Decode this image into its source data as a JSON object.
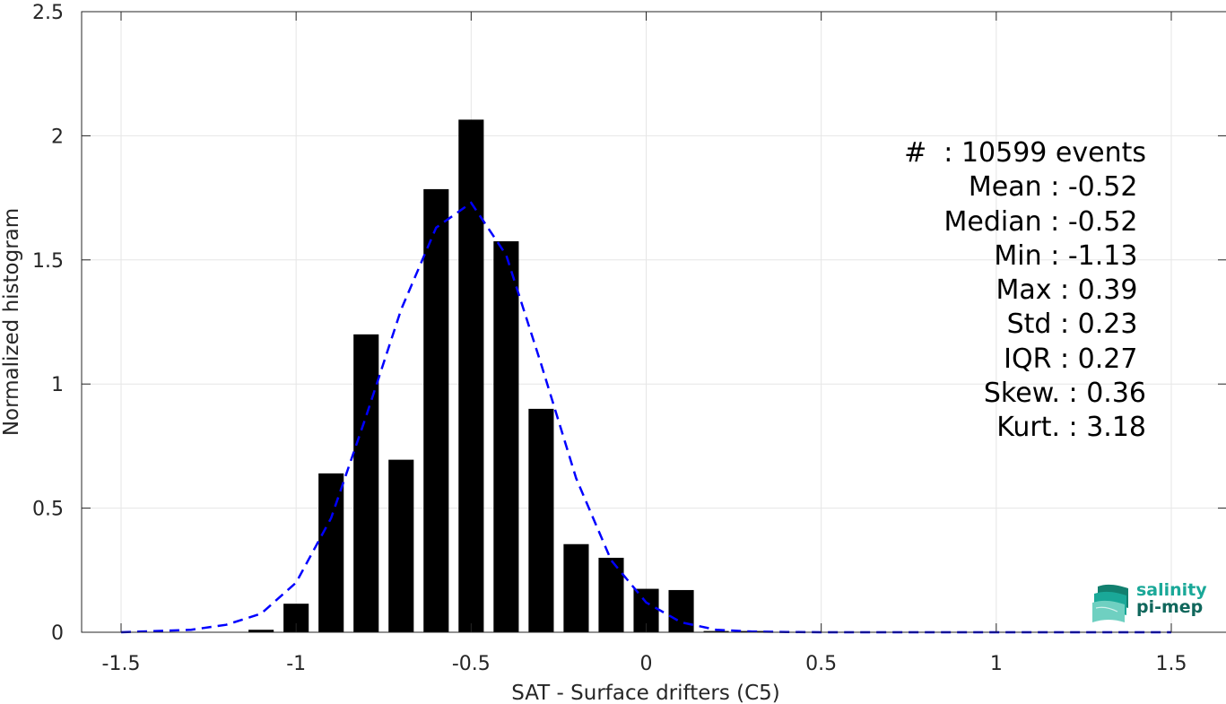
{
  "chart_data": {
    "type": "bar",
    "xlabel": "SAT - Surface drifters (C5)",
    "ylabel": "Normalized histogram",
    "xlim": [
      -1.5,
      1.5
    ],
    "ylim": [
      0,
      2.5
    ],
    "xticks": [
      -1.5,
      -1,
      -0.5,
      0,
      0.5,
      1,
      1.5
    ],
    "xtick_labels": [
      "-1.5",
      "-1",
      "-0.5",
      "0",
      "0.5",
      "1",
      "1.5"
    ],
    "yticks": [
      0,
      0.5,
      1,
      1.5,
      2,
      2.5
    ],
    "ytick_labels": [
      "0",
      "0.5",
      "1",
      "1.5",
      "2",
      "2.5"
    ],
    "grid": true,
    "bins": {
      "x": [
        -1.1,
        -1.0,
        -0.9,
        -0.8,
        -0.7,
        -0.6,
        -0.5,
        -0.4,
        -0.3,
        -0.2,
        -0.1,
        0.0,
        0.1,
        0.2,
        0.3
      ],
      "values": [
        0.01,
        0.115,
        0.64,
        1.2,
        0.695,
        1.785,
        2.065,
        1.575,
        0.9,
        0.355,
        0.3,
        0.175,
        0.17,
        0.005,
        0.005
      ],
      "color": "#000000"
    },
    "fit_curve": {
      "style": "dashed",
      "color": "#0000ff",
      "x": [
        -1.5,
        -1.4,
        -1.3,
        -1.2,
        -1.1,
        -1.0,
        -0.9,
        -0.8,
        -0.7,
        -0.6,
        -0.5,
        -0.4,
        -0.3,
        -0.2,
        -0.1,
        0.0,
        0.1,
        0.2,
        0.3,
        0.4,
        0.5,
        0.6,
        0.7,
        0.8,
        0.9,
        1.0,
        1.1,
        1.2,
        1.3,
        1.4,
        1.5
      ],
      "y": [
        0.0,
        0.005,
        0.01,
        0.03,
        0.075,
        0.2,
        0.46,
        0.87,
        1.3,
        1.63,
        1.73,
        1.52,
        1.08,
        0.62,
        0.29,
        0.12,
        0.04,
        0.01,
        0.003,
        0.001,
        0.0,
        0.0,
        0.0,
        0.0,
        0.0,
        0.0,
        0.0,
        0.0,
        0.0,
        0.0,
        0.0
      ]
    },
    "annotations": [
      "#  : 10599 events",
      "Mean : -0.52 ",
      "Median : -0.52 ",
      "Min : -1.13 ",
      "Max : 0.39 ",
      "Std : 0.23 ",
      "IQR : 0.27 ",
      "Skew. : 0.36",
      "Kurt. : 3.18"
    ]
  },
  "logo": {
    "line1": "salinity",
    "line2": "pi-mep",
    "color1": "#1aa898",
    "color2": "#10675c"
  }
}
